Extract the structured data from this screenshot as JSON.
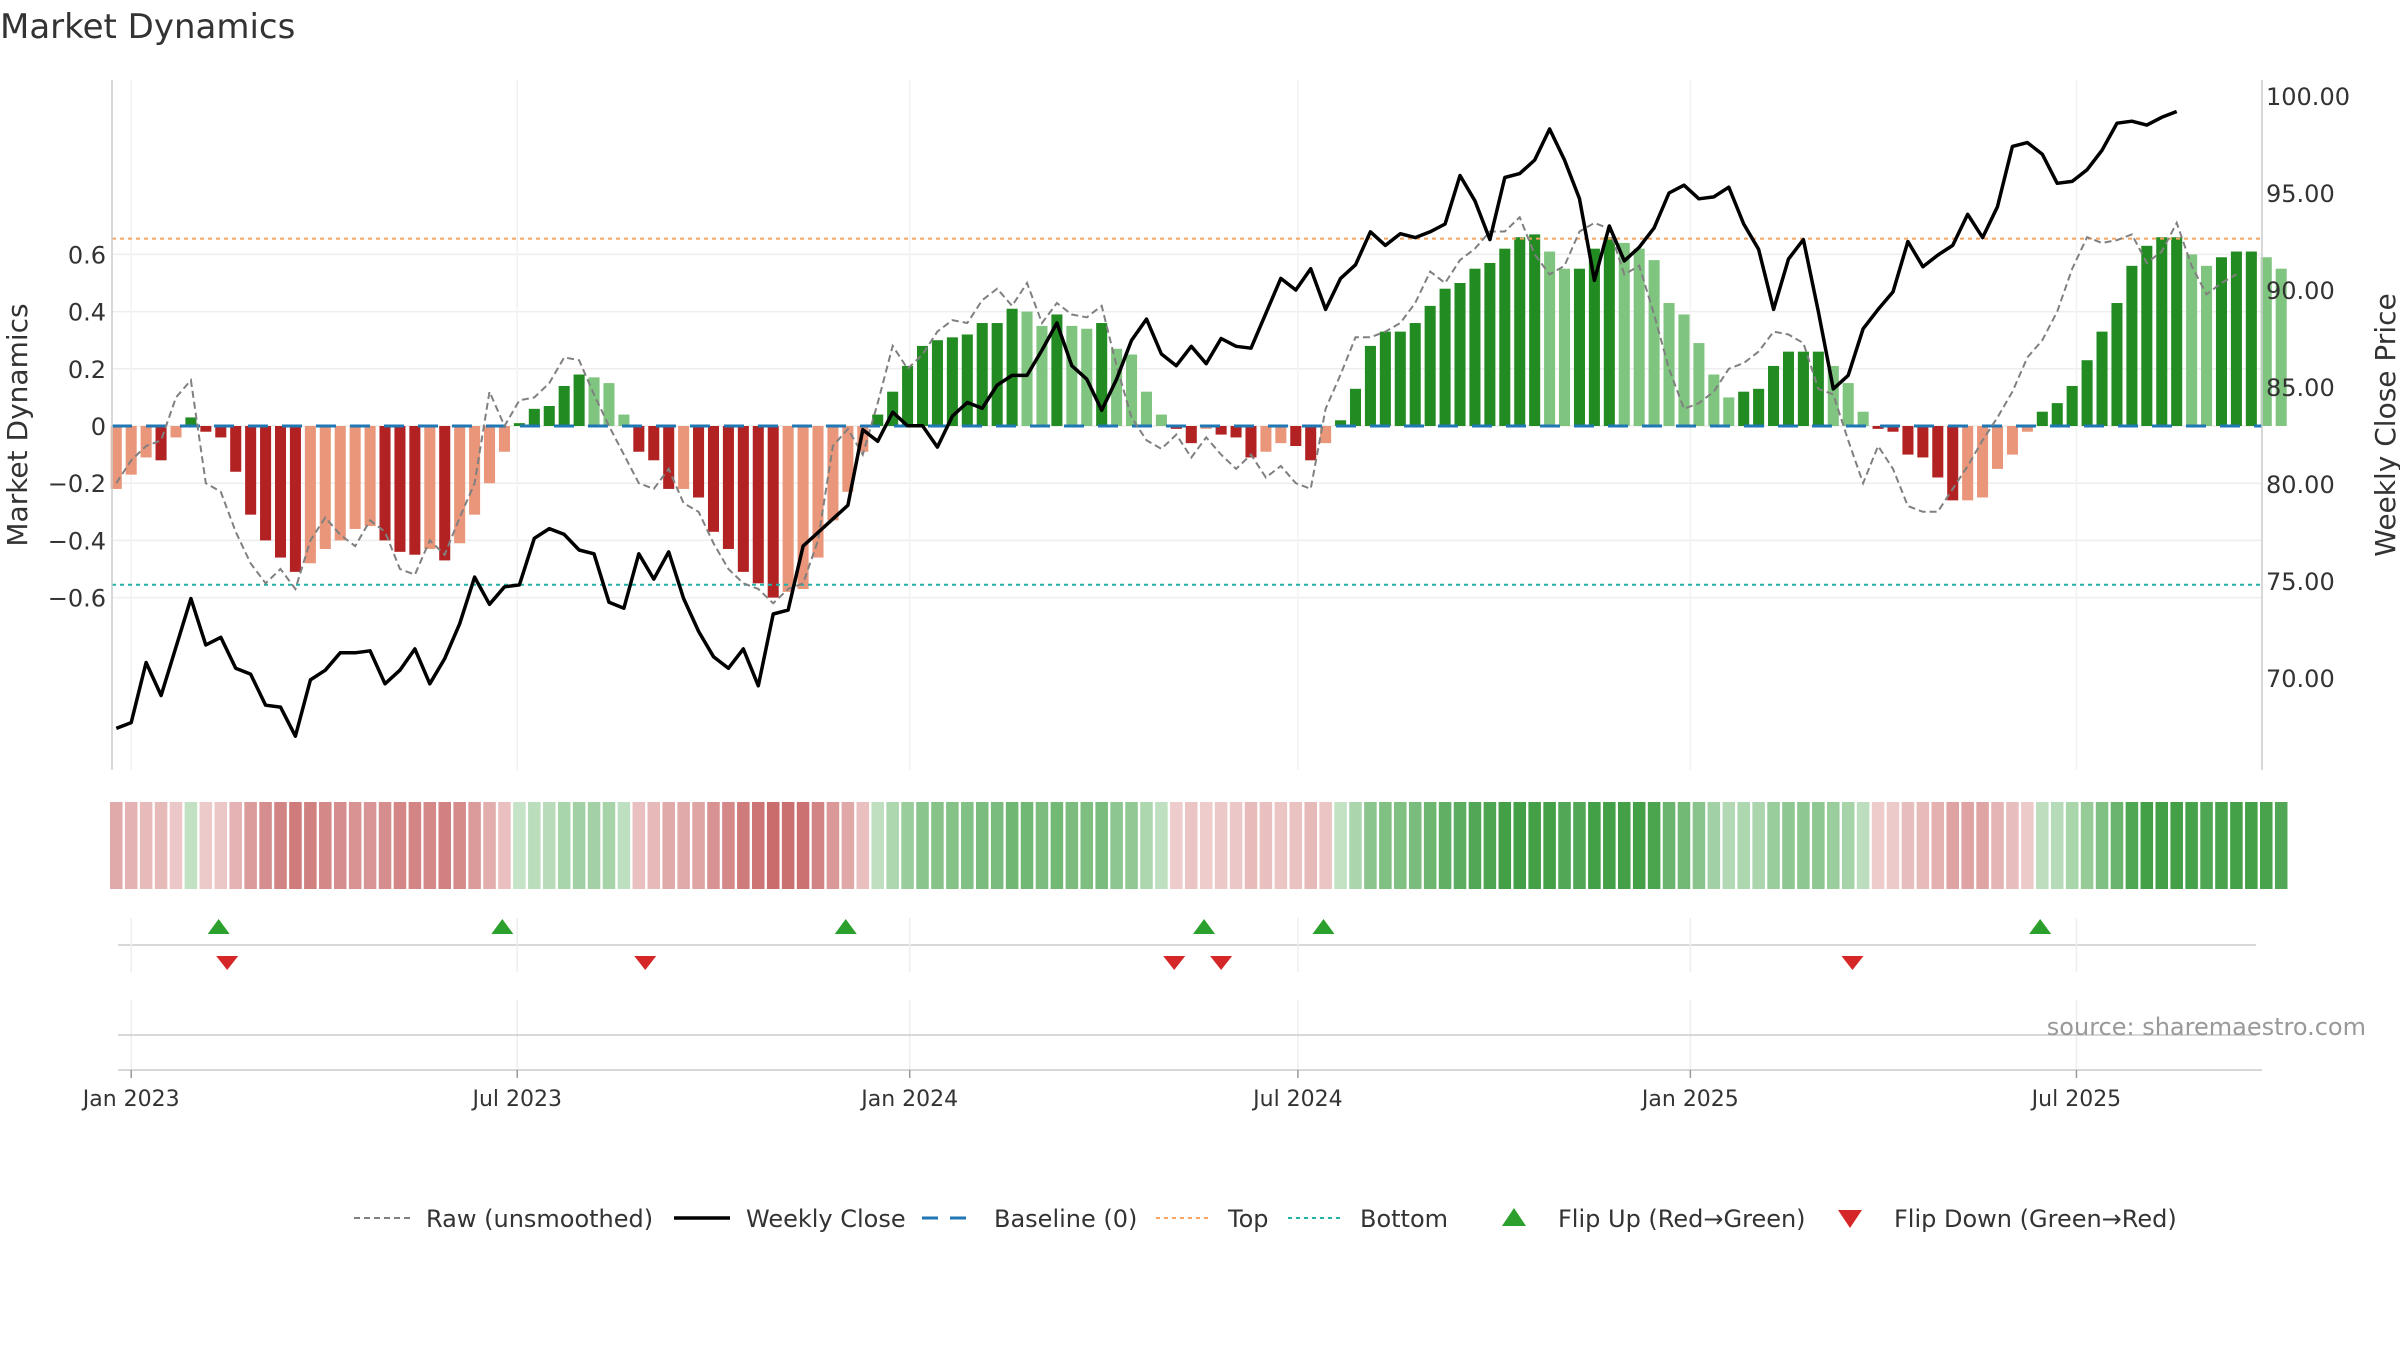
{
  "title": "Market Dynamics",
  "source": "source: sharemaestro.com",
  "colors": {
    "bar_green_strong": "#228b22",
    "bar_green_light": "#7fc47f",
    "bar_red_strong": "#b22222",
    "bar_red_light": "#e9967a",
    "raw_line": "#808080",
    "close_line": "#000000",
    "baseline": "#1f77b4",
    "top_line": "#f4a460",
    "bottom_line": "#20b2aa",
    "flip_up": "#2ca02c",
    "flip_down": "#d62728"
  },
  "chart_data": {
    "type": "bar",
    "title": "Market Dynamics",
    "ylabel": "Market Dynamics",
    "y2label": "Weekly Close Price",
    "ylim": [
      -0.72,
      0.73
    ],
    "y2lim": [
      65.5,
      101.5
    ],
    "yticks": [
      {
        "value": 0.6,
        "label": "0.6"
      },
      {
        "value": 0.4,
        "label": "0.4"
      },
      {
        "value": 0.2,
        "label": "0.2"
      },
      {
        "value": 0,
        "label": "0"
      },
      {
        "value": -0.2,
        "label": "−0.2"
      },
      {
        "value": -0.4,
        "label": "−0.4"
      },
      {
        "value": -0.6,
        "label": "−0.6"
      }
    ],
    "y2ticks": [
      {
        "value": 100,
        "label": "100.00"
      },
      {
        "value": 95,
        "label": "95.00"
      },
      {
        "value": 90,
        "label": "90.00"
      },
      {
        "value": 85,
        "label": "85.00"
      },
      {
        "value": 80,
        "label": "80.00"
      },
      {
        "value": 75,
        "label": "75.00"
      },
      {
        "value": 70,
        "label": "70.00"
      }
    ],
    "xticks": [
      {
        "date": "2023-01-01",
        "label": "Jan 2023"
      },
      {
        "date": "2023-07-01",
        "label": "Jul 2023"
      },
      {
        "date": "2024-01-01",
        "label": "Jan 2024"
      },
      {
        "date": "2024-07-01",
        "label": "Jul 2024"
      },
      {
        "date": "2025-01-01",
        "label": "Jan 2025"
      },
      {
        "date": "2025-07-01",
        "label": "Jul 2025"
      }
    ],
    "x_start": "2022-12-23",
    "x_end": "2025-09-26",
    "week_start": "2022-12-25",
    "top_level": 0.655,
    "bottom_level": -0.555,
    "baseline": 0,
    "series": [
      {
        "name": "Market Dynamics",
        "values": [
          -0.22,
          -0.17,
          -0.11,
          -0.12,
          -0.04,
          0.03,
          -0.02,
          -0.04,
          -0.16,
          -0.31,
          -0.4,
          -0.46,
          -0.51,
          -0.48,
          -0.43,
          -0.4,
          -0.36,
          -0.35,
          -0.4,
          -0.44,
          -0.45,
          -0.43,
          -0.47,
          -0.41,
          -0.31,
          -0.2,
          -0.09,
          0.01,
          0.06,
          0.07,
          0.14,
          0.18,
          0.17,
          0.15,
          0.04,
          -0.09,
          -0.12,
          -0.22,
          -0.22,
          -0.25,
          -0.37,
          -0.43,
          -0.51,
          -0.55,
          -0.6,
          -0.58,
          -0.57,
          -0.46,
          -0.33,
          -0.23,
          -0.09,
          0.04,
          0.12,
          0.21,
          0.28,
          0.3,
          0.31,
          0.32,
          0.36,
          0.36,
          0.41,
          0.4,
          0.35,
          0.39,
          0.35,
          0.34,
          0.36,
          0.27,
          0.25,
          0.12,
          0.04,
          -0.01,
          -0.06,
          -0.01,
          -0.03,
          -0.04,
          -0.11,
          -0.09,
          -0.06,
          -0.07,
          -0.12,
          -0.06,
          0.02,
          0.13,
          0.28,
          0.33,
          0.33,
          0.36,
          0.42,
          0.48,
          0.5,
          0.55,
          0.57,
          0.62,
          0.66,
          0.67,
          0.61,
          0.55,
          0.55,
          0.62,
          0.66,
          0.64,
          0.62,
          0.58,
          0.43,
          0.39,
          0.29,
          0.18,
          0.1,
          0.12,
          0.13,
          0.21,
          0.26,
          0.26,
          0.26,
          0.21,
          0.15,
          0.05,
          -0.01,
          -0.02,
          -0.1,
          -0.11,
          -0.18,
          -0.26,
          -0.26,
          -0.25,
          -0.15,
          -0.1,
          -0.02,
          0.05,
          0.08,
          0.14,
          0.23,
          0.33,
          0.43,
          0.56,
          0.63,
          0.66,
          0.66,
          0.6,
          0.56,
          0.59,
          0.61,
          0.61,
          0.59,
          0.55
        ]
      },
      {
        "name": "Raw (unsmoothed)",
        "values": [
          -0.2,
          -0.12,
          -0.07,
          -0.05,
          0.1,
          0.16,
          -0.2,
          -0.23,
          -0.37,
          -0.48,
          -0.55,
          -0.5,
          -0.57,
          -0.4,
          -0.32,
          -0.38,
          -0.42,
          -0.33,
          -0.37,
          -0.5,
          -0.52,
          -0.4,
          -0.45,
          -0.32,
          -0.2,
          0.12,
          0.0,
          0.09,
          0.1,
          0.15,
          0.24,
          0.23,
          0.11,
          0.0,
          -0.1,
          -0.2,
          -0.22,
          -0.15,
          -0.27,
          -0.3,
          -0.41,
          -0.5,
          -0.55,
          -0.57,
          -0.62,
          -0.57,
          -0.55,
          -0.4,
          -0.07,
          -0.01,
          -0.1,
          0.08,
          0.28,
          0.2,
          0.25,
          0.33,
          0.37,
          0.36,
          0.44,
          0.48,
          0.42,
          0.5,
          0.36,
          0.43,
          0.39,
          0.38,
          0.42,
          0.21,
          0.03,
          -0.05,
          -0.08,
          -0.03,
          -0.11,
          -0.04,
          -0.1,
          -0.15,
          -0.1,
          -0.18,
          -0.14,
          -0.2,
          -0.22,
          0.06,
          0.18,
          0.31,
          0.31,
          0.33,
          0.36,
          0.43,
          0.54,
          0.5,
          0.58,
          0.62,
          0.68,
          0.68,
          0.73,
          0.6,
          0.53,
          0.56,
          0.68,
          0.71,
          0.69,
          0.53,
          0.56,
          0.39,
          0.2,
          0.06,
          0.08,
          0.12,
          0.2,
          0.22,
          0.26,
          0.33,
          0.32,
          0.29,
          0.13,
          0.11,
          -0.05,
          -0.2,
          -0.07,
          -0.15,
          -0.28,
          -0.3,
          -0.3,
          -0.22,
          -0.14,
          -0.05,
          0.03,
          0.12,
          0.24,
          0.3,
          0.4,
          0.55,
          0.66,
          0.64,
          0.65,
          0.67,
          0.57,
          0.61,
          0.71,
          0.56,
          0.46,
          0.5,
          0.53
        ]
      },
      {
        "name": "Weekly Close",
        "axis": "right",
        "values": [
          67.4,
          67.7,
          70.8,
          69.1,
          71.6,
          74.1,
          71.7,
          72.1,
          70.5,
          70.2,
          68.6,
          68.5,
          67.0,
          69.9,
          70.4,
          71.3,
          71.3,
          71.4,
          69.7,
          70.4,
          71.5,
          69.7,
          71.0,
          72.8,
          75.2,
          73.8,
          74.7,
          74.8,
          77.2,
          77.7,
          77.4,
          76.6,
          76.4,
          73.9,
          73.6,
          76.4,
          75.1,
          76.5,
          74.1,
          72.4,
          71.1,
          70.5,
          71.5,
          69.6,
          73.3,
          73.5,
          76.8,
          77.5,
          78.2,
          78.9,
          82.8,
          82.2,
          83.7,
          83.0,
          83.0,
          81.9,
          83.5,
          84.2,
          83.9,
          85.1,
          85.6,
          85.6,
          86.9,
          88.3,
          86.1,
          85.4,
          83.8,
          85.4,
          87.4,
          88.5,
          86.7,
          86.1,
          87.1,
          86.2,
          87.5,
          87.1,
          87.0,
          88.8,
          90.6,
          90.0,
          91.1,
          89.0,
          90.6,
          91.3,
          93.0,
          92.3,
          92.9,
          92.7,
          93.0,
          93.4,
          95.9,
          94.6,
          92.6,
          95.8,
          96.0,
          96.7,
          98.3,
          96.7,
          94.7,
          90.5,
          93.3,
          91.5,
          92.2,
          93.2,
          95.0,
          95.4,
          94.7,
          94.8,
          95.3,
          93.4,
          92.1,
          89.0,
          91.6,
          92.6,
          88.9,
          84.9,
          85.6,
          88.0,
          89.0,
          89.9,
          92.5,
          91.2,
          91.8,
          92.3,
          93.9,
          92.7,
          94.3,
          97.4,
          97.6,
          97.0,
          95.5,
          95.6,
          96.2,
          97.2,
          98.6,
          98.7,
          98.5,
          98.9,
          99.2
        ]
      }
    ],
    "flip_up_dates": [
      "2023-02-11",
      "2023-06-24",
      "2023-12-02",
      "2024-05-18",
      "2024-07-13",
      "2025-06-14"
    ],
    "flip_down_dates": [
      "2023-02-15",
      "2023-08-30",
      "2024-05-04",
      "2024-05-26",
      "2025-03-18"
    ],
    "legend": {
      "position": "bottom",
      "entries": [
        {
          "label": "Raw (unsmoothed)",
          "style": "dashed-gray"
        },
        {
          "label": "Weekly Close",
          "style": "solid-black"
        },
        {
          "label": "Baseline (0)",
          "style": "dashed-blue"
        },
        {
          "label": "Top",
          "style": "dotted-orange"
        },
        {
          "label": "Bottom",
          "style": "dotted-teal"
        },
        {
          "label": "Flip Up (Red→Green)",
          "style": "triangle-up-green"
        },
        {
          "label": "Flip Down (Green→Red)",
          "style": "triangle-down-red"
        }
      ]
    },
    "grid": true
  }
}
